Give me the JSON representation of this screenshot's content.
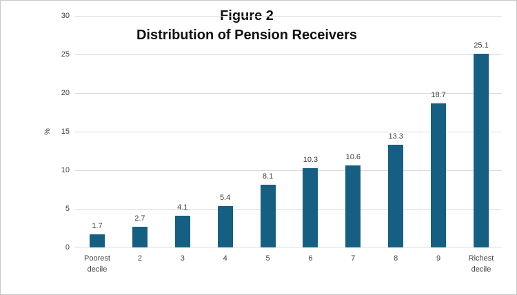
{
  "figure": {
    "title_line1": "Figure 2",
    "title_line2": "Distribution of Pension Receivers"
  },
  "chart_data": {
    "type": "bar",
    "title": "Figure 2",
    "subtitle": "Distribution of Pension Receivers",
    "title_lines": [
      "Figure 2",
      "Distribution of Pension Receivers"
    ],
    "categories": [
      "Poorest decile",
      "2",
      "3",
      "4",
      "5",
      "6",
      "7",
      "8",
      "9",
      "Richest decile"
    ],
    "values": [
      1.7,
      2.7,
      4.1,
      5.4,
      8.1,
      10.3,
      10.6,
      13.3,
      18.7,
      25.1
    ],
    "value_labels": [
      "1.7",
      "2.7",
      "4.1",
      "5.4",
      "8.1",
      "10.3",
      "10.6",
      "13.3",
      "18.7",
      "25.1"
    ],
    "xlabel": "",
    "ylabel": "%",
    "ylim": [
      0,
      30
    ],
    "ytick_step": 5,
    "ytick_labels": [
      "0",
      "5",
      "10",
      "15",
      "20",
      "25",
      "30"
    ],
    "grid": "horizontal",
    "legend": "none",
    "bar_color": "#156082",
    "gridline_color": "#d9d9d9",
    "axis_label_color": "#404040",
    "title_color": "#111111"
  }
}
